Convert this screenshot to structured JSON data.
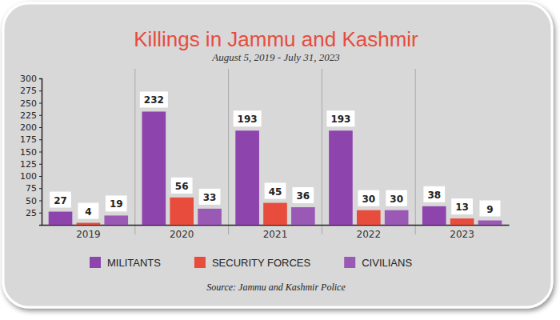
{
  "chart_data": {
    "type": "bar",
    "title": "Killings in Jammu and Kashmir",
    "subtitle": "August 5, 2019 - July 31, 2023",
    "source": "Source: Jammu and Kashmir Police",
    "categories": [
      "2019",
      "2020",
      "2021",
      "2022",
      "2023"
    ],
    "series": [
      {
        "name": "MILITANTS",
        "color": "#8e44ad",
        "values": [
          27,
          232,
          193,
          193,
          38
        ]
      },
      {
        "name": "SECURITY FORCES",
        "color": "#e74c3c",
        "values": [
          4,
          56,
          45,
          30,
          13
        ]
      },
      {
        "name": "CIVILIANS",
        "color": "#9b59b6",
        "values": [
          19,
          33,
          36,
          30,
          9
        ]
      }
    ],
    "ylim": [
      0,
      300
    ],
    "yticks": [
      25,
      50,
      75,
      100,
      125,
      150,
      175,
      200,
      225,
      250,
      275,
      300
    ],
    "grid": false,
    "legend": "bottom",
    "data_labels": true
  }
}
